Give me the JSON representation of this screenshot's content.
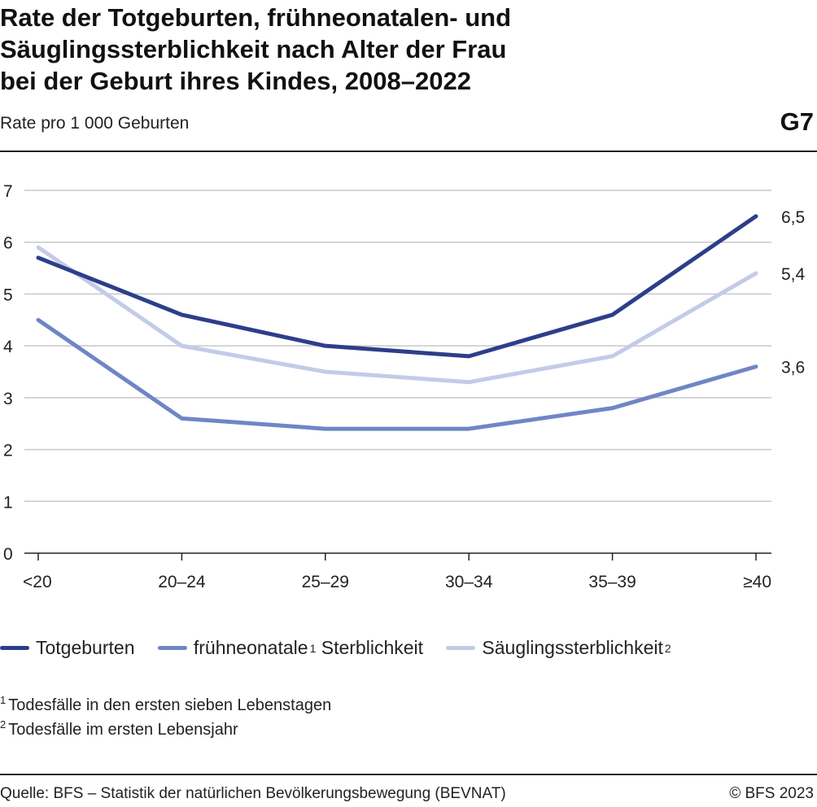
{
  "header": {
    "title_lines": [
      "Rate der Totgeburten, frühneonatalen- und",
      "Säuglingssterblichkeit nach Alter der Frau",
      "bei der Geburt ihres Kindes, 2008–2022"
    ],
    "subtitle": "Rate pro 1 000 Geburten",
    "graphic_number": "G7"
  },
  "chart_data": {
    "type": "line",
    "categories": [
      "<20",
      "20–24",
      "25–29",
      "30–34",
      "35–39",
      "≥40"
    ],
    "ylim": [
      0,
      7
    ],
    "yticks": [
      "0",
      "1",
      "2",
      "3",
      "4",
      "5",
      "6",
      "7"
    ],
    "grid": true,
    "legend_position": "bottom",
    "series": [
      {
        "name": "Totgeburten",
        "color": "#2d3e8a",
        "values": [
          5.7,
          4.6,
          4.0,
          3.8,
          4.6,
          6.5
        ],
        "end_label": "6,5"
      },
      {
        "name": "frühneonatale",
        "name_sup": "1",
        "name_suffix": "Sterblichkeit",
        "color": "#7086c4",
        "values": [
          4.5,
          2.6,
          2.4,
          2.4,
          2.8,
          3.6
        ],
        "end_label": "3,6"
      },
      {
        "name": "Säuglingssterblichkeit",
        "name_sup": "2",
        "color": "#c3cbe8",
        "values": [
          5.9,
          4.0,
          3.5,
          3.3,
          3.8,
          5.4
        ],
        "end_label": "5,4"
      }
    ]
  },
  "legend": {
    "items": [
      {
        "label": "Totgeburten",
        "sup": "",
        "suffix": "",
        "color": "#2d3e8a"
      },
      {
        "label": "frühneonatale",
        "sup": "1",
        "suffix": "Sterblichkeit",
        "color": "#7086c4"
      },
      {
        "label": "Säuglingssterblichkeit",
        "sup": "2",
        "suffix": "",
        "color": "#c3cbe8"
      }
    ]
  },
  "footnotes": [
    {
      "mark": "1",
      "text": "Todesfälle in den ersten sieben Lebenstagen"
    },
    {
      "mark": "2",
      "text": "Todesfälle im ersten Lebensjahr"
    }
  ],
  "footer": {
    "source": "Quelle: BFS – Statistik der natürlichen Bevölkerungsbewegung (BEVNAT)",
    "copyright": "© BFS 2023"
  }
}
